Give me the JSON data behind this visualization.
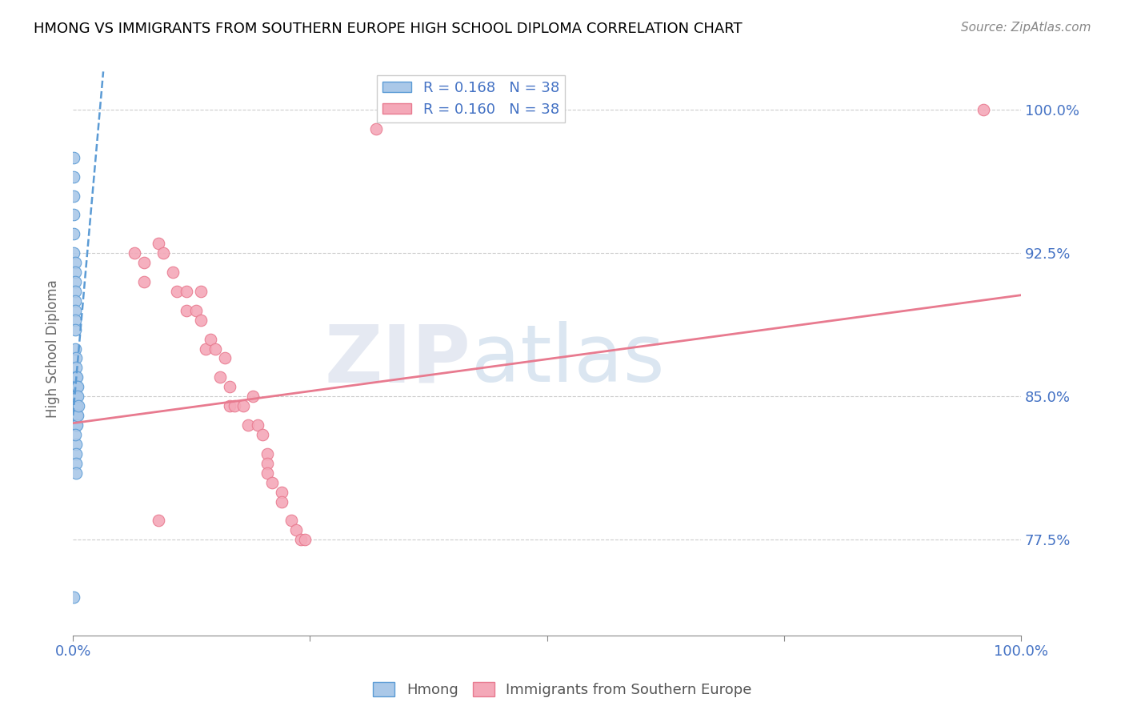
{
  "title": "HMONG VS IMMIGRANTS FROM SOUTHERN EUROPE HIGH SCHOOL DIPLOMA CORRELATION CHART",
  "source": "Source: ZipAtlas.com",
  "ylabel": "High School Diploma",
  "watermark": "ZIPatlas",
  "legend_entries": [
    {
      "label": "R = 0.168   N = 38",
      "color": "#a8c4e0"
    },
    {
      "label": "R = 0.160   N = 38",
      "color": "#f4a0b0"
    }
  ],
  "bottom_legend": [
    "Hmong",
    "Immigrants from Southern Europe"
  ],
  "xlim": [
    0.0,
    1.0
  ],
  "ylim": [
    0.725,
    1.025
  ],
  "yticks": [
    0.775,
    0.85,
    0.925,
    1.0
  ],
  "ytick_labels": [
    "77.5%",
    "85.0%",
    "92.5%",
    "100.0%"
  ],
  "blue_scatter_x": [
    0.001,
    0.001,
    0.001,
    0.001,
    0.001,
    0.001,
    0.002,
    0.002,
    0.002,
    0.002,
    0.002,
    0.002,
    0.002,
    0.002,
    0.002,
    0.003,
    0.003,
    0.003,
    0.003,
    0.003,
    0.003,
    0.003,
    0.003,
    0.003,
    0.003,
    0.003,
    0.003,
    0.004,
    0.004,
    0.004,
    0.004,
    0.004,
    0.005,
    0.005,
    0.005,
    0.006,
    0.001,
    0.002
  ],
  "blue_scatter_y": [
    0.975,
    0.965,
    0.955,
    0.945,
    0.935,
    0.925,
    0.92,
    0.915,
    0.91,
    0.905,
    0.9,
    0.895,
    0.89,
    0.885,
    0.875,
    0.87,
    0.865,
    0.86,
    0.855,
    0.85,
    0.845,
    0.84,
    0.835,
    0.825,
    0.82,
    0.815,
    0.81,
    0.86,
    0.855,
    0.845,
    0.84,
    0.835,
    0.855,
    0.85,
    0.84,
    0.845,
    0.745,
    0.83
  ],
  "pink_scatter_x": [
    0.32,
    0.065,
    0.075,
    0.075,
    0.09,
    0.095,
    0.105,
    0.11,
    0.12,
    0.12,
    0.13,
    0.135,
    0.135,
    0.14,
    0.145,
    0.15,
    0.155,
    0.16,
    0.165,
    0.165,
    0.17,
    0.18,
    0.185,
    0.19,
    0.195,
    0.2,
    0.205,
    0.205,
    0.205,
    0.21,
    0.22,
    0.22,
    0.23,
    0.235,
    0.24,
    0.245,
    0.09,
    0.96
  ],
  "pink_scatter_y": [
    0.99,
    0.925,
    0.92,
    0.91,
    0.93,
    0.925,
    0.915,
    0.905,
    0.905,
    0.895,
    0.895,
    0.905,
    0.89,
    0.875,
    0.88,
    0.875,
    0.86,
    0.87,
    0.855,
    0.845,
    0.845,
    0.845,
    0.835,
    0.85,
    0.835,
    0.83,
    0.82,
    0.815,
    0.81,
    0.805,
    0.8,
    0.795,
    0.785,
    0.78,
    0.775,
    0.775,
    0.785,
    1.0
  ],
  "blue_line_x": [
    0.0,
    0.032
  ],
  "blue_line_y": [
    0.84,
    1.02
  ],
  "pink_line_x": [
    0.0,
    1.0
  ],
  "pink_line_y": [
    0.836,
    0.903
  ],
  "blue_color": "#5b9bd5",
  "pink_color": "#e87a8f",
  "blue_scatter_color": "#aac8e8",
  "pink_scatter_color": "#f4a8b8",
  "grid_color": "#cccccc",
  "title_color": "#000000",
  "tick_label_color": "#4472c4",
  "background_color": "#ffffff"
}
